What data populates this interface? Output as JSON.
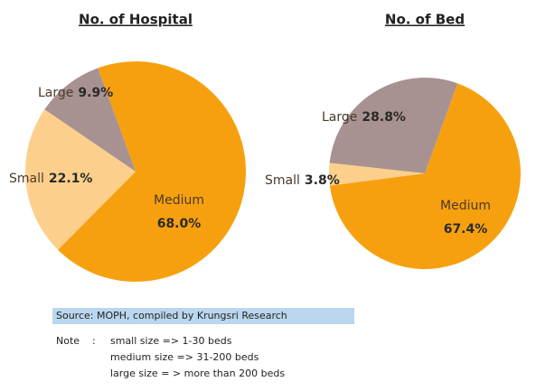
{
  "chart_data": [
    {
      "type": "pie",
      "title": "No. of Hospital",
      "categories": [
        "Medium",
        "Small",
        "Large"
      ],
      "values": [
        68.0,
        22.1,
        9.9
      ],
      "value_labels": [
        "68.0%",
        "22.1%",
        "9.9%"
      ],
      "colors": [
        "#f7a00f",
        "#fcd08c",
        "#a89291"
      ]
    },
    {
      "type": "pie",
      "title": "No. of Bed",
      "categories": [
        "Medium",
        "Small",
        "Large"
      ],
      "values": [
        67.4,
        3.8,
        28.8
      ],
      "value_labels": [
        "67.4%",
        "3.8%",
        "28.8%"
      ],
      "colors": [
        "#f7a00f",
        "#fcd08c",
        "#a89291"
      ]
    }
  ],
  "source": "Source: MOPH, compiled by Krungsri Research",
  "note": {
    "label": "Note",
    "separator": ":",
    "lines": [
      "small size => 1-30 beds",
      "medium size => 31-200 beds",
      "large  size = > more than 200 beds"
    ]
  }
}
